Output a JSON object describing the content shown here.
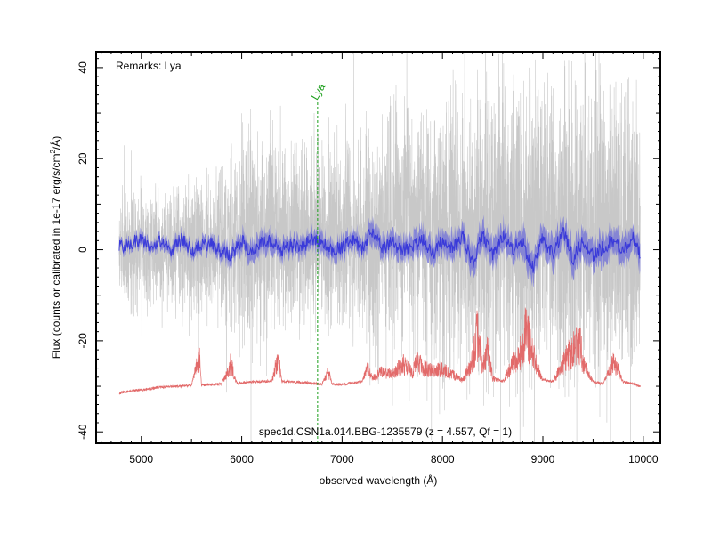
{
  "chart_data": {
    "type": "line",
    "title": "",
    "xlabel": "observed wavelength (Å)",
    "ylabel_prefix": "Flux (counts or calibrated in 1e-17 erg/s/cm",
    "ylabel_sup": "2",
    "ylabel_suffix": "/Å)",
    "xlim": [
      4550,
      10170
    ],
    "ylim": [
      -42.5,
      43.5
    ],
    "xticks": [
      5000,
      6000,
      7000,
      8000,
      9000,
      10000
    ],
    "yticks": [
      -40,
      -20,
      0,
      20,
      40
    ],
    "grid": false,
    "remarks": "Remarks: Lya",
    "caption": "spec1d.CSN1a.014.BBG-1235579 (z = 4.557, Qf = 1)",
    "spectral_lines": [
      {
        "name": "Lya",
        "wavelength": 6756,
        "color": "#1a9e1a"
      }
    ],
    "series": [
      {
        "name": "",
        "role": "raw flux",
        "color": "#c8c8c8",
        "x": [
          4780,
          4900,
          5000,
          5100,
          5200,
          5300,
          5400,
          5500,
          5600,
          5700,
          5800,
          5900,
          6000,
          6100,
          6200,
          6300,
          6400,
          6500,
          6600,
          6700,
          6800,
          6900,
          7000,
          7100,
          7200,
          7300,
          7400,
          7500,
          7600,
          7700,
          7800,
          7900,
          8000,
          8100,
          8200,
          8300,
          8400,
          8500,
          8600,
          8700,
          8800,
          8900,
          9000,
          9100,
          9200,
          9300,
          9400,
          9500,
          9600,
          9700,
          9800,
          9900,
          9970
        ],
        "y_low": [
          -13,
          -11,
          -12,
          -10,
          -12,
          -13,
          -11,
          -14,
          -16,
          -13,
          -15,
          -20,
          -18,
          -22,
          -20,
          -16,
          -18,
          -14,
          -16,
          -15,
          -17,
          -14,
          -16,
          -18,
          -20,
          -22,
          -19,
          -20,
          -18,
          -22,
          -20,
          -21,
          -23,
          -22,
          -25,
          -24,
          -26,
          -25,
          -27,
          -24,
          -28,
          -30,
          -26,
          -28,
          -27,
          -30,
          -28,
          -26,
          -27,
          -25,
          -26,
          -24,
          -28
        ],
        "y_high": [
          12,
          11,
          13,
          12,
          11,
          13,
          14,
          15,
          16,
          15,
          17,
          20,
          22,
          24,
          23,
          26,
          24,
          20,
          22,
          21,
          23,
          20,
          24,
          25,
          23,
          28,
          26,
          30,
          27,
          29,
          31,
          28,
          30,
          32,
          29,
          33,
          30,
          31,
          34,
          32,
          35,
          36,
          33,
          38,
          34,
          36,
          35,
          32,
          34,
          31,
          33,
          30,
          35
        ]
      },
      {
        "name": "",
        "role": "smoothed flux",
        "color": "#3a3ad9",
        "band_color": "#6f6fd8",
        "x": [
          4780,
          4900,
          5000,
          5100,
          5200,
          5300,
          5400,
          5500,
          5600,
          5700,
          5800,
          5900,
          6000,
          6100,
          6200,
          6300,
          6400,
          6500,
          6600,
          6700,
          6800,
          6900,
          7000,
          7100,
          7200,
          7300,
          7400,
          7500,
          7600,
          7700,
          7800,
          7900,
          8000,
          8100,
          8200,
          8300,
          8400,
          8500,
          8600,
          8700,
          8800,
          8900,
          9000,
          9100,
          9200,
          9300,
          9400,
          9500,
          9600,
          9700,
          9800,
          9900,
          9970
        ],
        "y": [
          0.5,
          1.5,
          2.0,
          0.5,
          2.0,
          0.0,
          2.5,
          -0.5,
          1.0,
          1.5,
          -0.5,
          -1.0,
          2.0,
          -0.5,
          1.5,
          2.0,
          0.0,
          1.0,
          0.5,
          2.5,
          1.5,
          -0.5,
          0.5,
          2.5,
          0.5,
          4.0,
          0.5,
          1.5,
          0.0,
          0.5,
          2.5,
          -1.0,
          2.0,
          0.5,
          3.0,
          -3.0,
          3.5,
          -1.0,
          3.0,
          0.5,
          1.5,
          -4.0,
          2.5,
          -1.0,
          4.0,
          -2.0,
          2.0,
          -1.5,
          0.5,
          2.0,
          -0.5,
          2.5,
          -1.0
        ],
        "band": [
          1.2,
          1.2,
          1.4,
          1.2,
          1.4,
          1.3,
          1.6,
          1.5,
          1.6,
          1.7,
          1.9,
          2.0,
          2.2,
          2.4,
          2.3,
          2.5,
          2.3,
          2.0,
          2.1,
          2.0,
          2.2,
          2.0,
          2.3,
          2.4,
          2.2,
          2.6,
          2.5,
          2.7,
          2.6,
          2.8,
          2.9,
          2.7,
          3.0,
          3.1,
          2.9,
          3.2,
          3.0,
          3.0,
          3.3,
          3.1,
          3.4,
          3.5,
          3.2,
          3.6,
          3.3,
          3.5,
          3.4,
          3.1,
          3.3,
          3.0,
          3.2,
          2.9,
          3.4
        ]
      },
      {
        "name": "",
        "role": "sky",
        "color": "#e26a6a",
        "x": [
          4780,
          4900,
          5000,
          5100,
          5200,
          5300,
          5400,
          5500,
          5577,
          5600,
          5700,
          5800,
          5890,
          5950,
          6000,
          6100,
          6200,
          6300,
          6364,
          6400,
          6500,
          6600,
          6700,
          6800,
          6863,
          6900,
          7000,
          7100,
          7200,
          7250,
          7300,
          7400,
          7500,
          7600,
          7700,
          7750,
          7800,
          7900,
          8000,
          8100,
          8200,
          8300,
          8345,
          8400,
          8450,
          8500,
          8600,
          8700,
          8800,
          8830,
          8900,
          9000,
          9100,
          9200,
          9300,
          9375,
          9400,
          9500,
          9600,
          9700,
          9800,
          9900,
          9970
        ],
        "y": [
          -31.5,
          -31.0,
          -30.8,
          -30.5,
          -30.2,
          -30.0,
          -30.0,
          -29.8,
          -22.0,
          -29.8,
          -29.6,
          -29.5,
          -24.0,
          -29.3,
          -29.2,
          -29.0,
          -29.0,
          -28.8,
          -22.0,
          -29.0,
          -29.0,
          -29.2,
          -29.3,
          -29.5,
          -26.0,
          -29.5,
          -29.6,
          -29.3,
          -29.0,
          -25.0,
          -28.0,
          -26.0,
          -27.0,
          -24.0,
          -26.5,
          -22.0,
          -25.0,
          -26.0,
          -25.5,
          -27.0,
          -28.5,
          -23.0,
          -15.0,
          -25.0,
          -20.0,
          -28.0,
          -29.0,
          -24.0,
          -20.0,
          -15.0,
          -22.0,
          -28.5,
          -29.0,
          -24.0,
          -20.0,
          -18.0,
          -24.0,
          -29.0,
          -29.5,
          -23.0,
          -29.0,
          -29.5,
          -30.0
        ]
      }
    ]
  }
}
